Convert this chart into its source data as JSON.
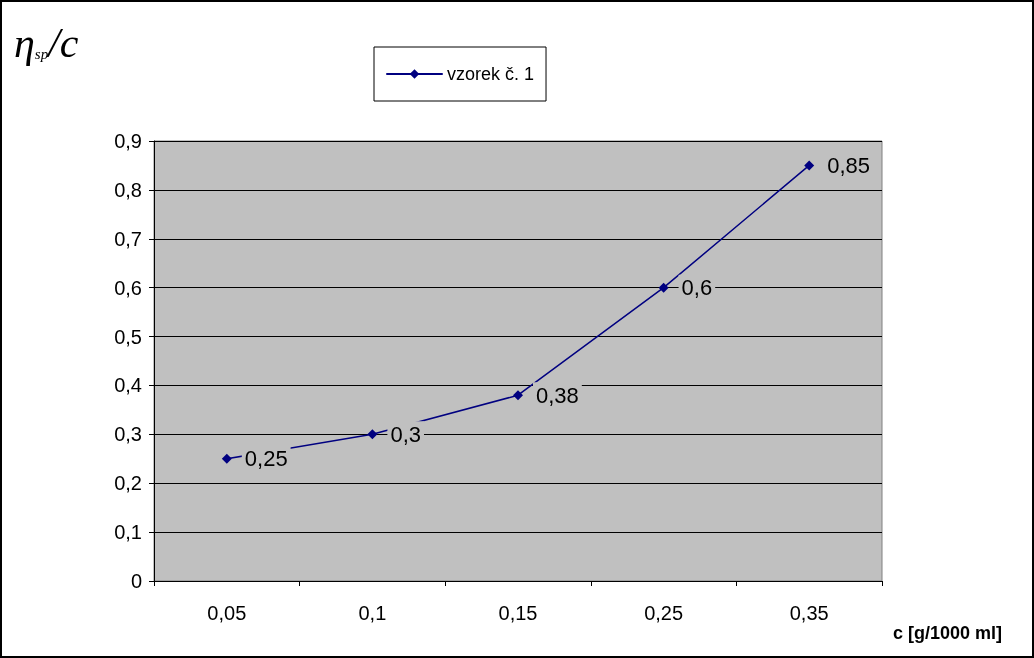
{
  "chart_data": {
    "type": "line",
    "ylabel": "η$_{sp}$/c",
    "xlabel": "c [g/1000 ml]",
    "categories": [
      "0,05",
      "0,1",
      "0,15",
      "0,25",
      "0,35"
    ],
    "series": [
      {
        "name": "vzorek č. 1",
        "color": "#000080",
        "values": [
          0.25,
          0.3,
          0.38,
          0.6,
          0.85
        ],
        "value_labels": [
          "0,25",
          "0,3",
          "0,38",
          "0,6",
          "0,85"
        ]
      }
    ],
    "ylim": [
      0,
      0.9
    ],
    "yticks": [
      0,
      {
        "value": 0.1,
        "label": "0,1"
      },
      {
        "value": 0.2,
        "label": "0,2"
      },
      {
        "value": 0.3,
        "label": "0,3"
      },
      {
        "value": 0.4,
        "label": "0,4"
      },
      {
        "value": 0.5,
        "label": "0,5"
      },
      {
        "value": 0.6,
        "label": "0,6"
      },
      {
        "value": 0.7,
        "label": "0,7"
      },
      {
        "value": 0.8,
        "label": "0,8"
      },
      {
        "value": 0.9,
        "label": "0,9"
      }
    ],
    "grid": "y",
    "legend": "top",
    "marker": "diamond",
    "line_style": "solid"
  }
}
